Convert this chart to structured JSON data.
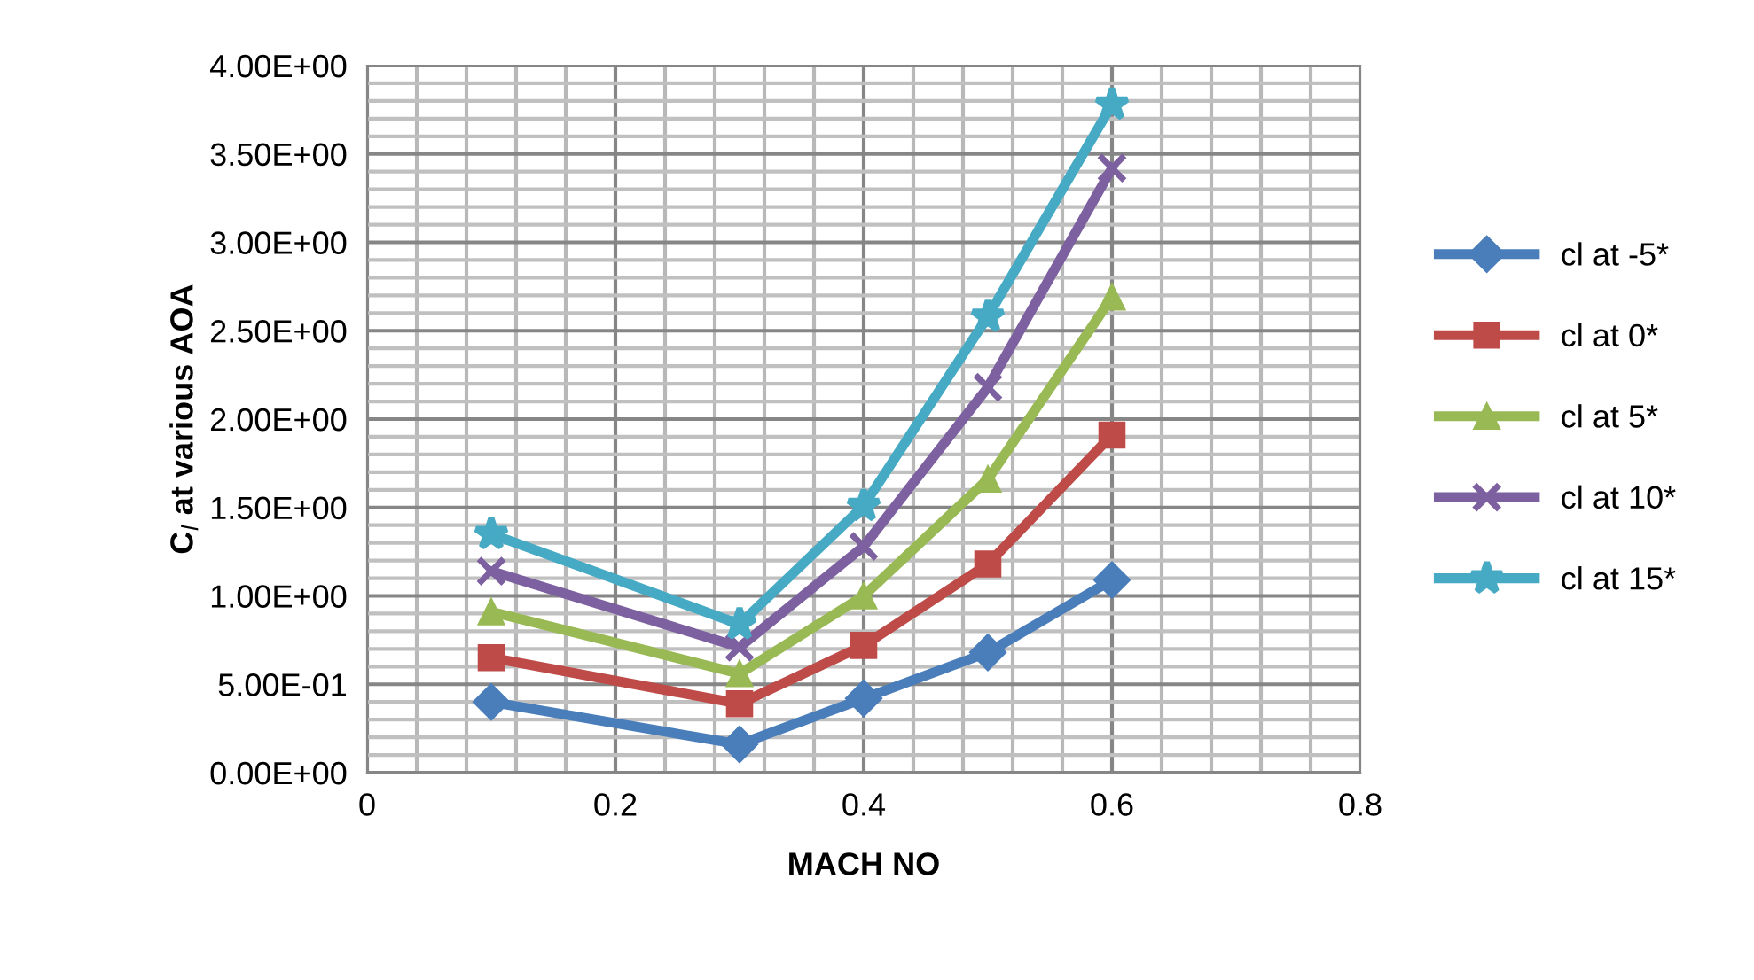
{
  "chart_data": {
    "type": "line",
    "xlabel": "MACH NO",
    "ylabel": "C$_{l}$ at various AOA",
    "x": [
      0.1,
      0.3,
      0.4,
      0.5,
      0.6
    ],
    "series": [
      {
        "name": "cl at -5*",
        "color": "#4a7ebb",
        "marker": "diamond",
        "values": [
          0.4,
          0.16,
          0.42,
          0.68,
          1.09
        ]
      },
      {
        "name": "cl at 0*",
        "color": "#be4b48",
        "marker": "square",
        "values": [
          0.65,
          0.39,
          0.72,
          1.18,
          1.91
        ]
      },
      {
        "name": "cl at 5*",
        "color": "#98b954",
        "marker": "triangle",
        "values": [
          0.91,
          0.56,
          1.0,
          1.66,
          2.69
        ]
      },
      {
        "name": "cl at 10*",
        "color": "#7d60a0",
        "marker": "cross",
        "values": [
          1.14,
          0.71,
          1.28,
          2.18,
          3.42
        ]
      },
      {
        "name": "cl at 15*",
        "color": "#46aac5",
        "marker": "star",
        "values": [
          1.35,
          0.84,
          1.51,
          2.58,
          3.78
        ]
      }
    ],
    "xlim": [
      0,
      0.8
    ],
    "xticks": [
      0,
      {
        "value": 0.04,
        "label": null
      },
      {
        "value": 0.08,
        "label": null
      },
      {
        "value": 0.12,
        "label": null
      },
      {
        "value": 0.16,
        "label": null
      },
      0.2,
      {
        "value": 0.24,
        "label": null
      },
      {
        "value": 0.28,
        "label": null
      },
      {
        "value": 0.32,
        "label": null
      },
      {
        "value": 0.36,
        "label": null
      },
      0.4,
      {
        "value": 0.44,
        "label": null
      },
      {
        "value": 0.48,
        "label": null
      },
      {
        "value": 0.52,
        "label": null
      },
      {
        "value": 0.56,
        "label": null
      },
      0.6,
      {
        "value": 0.64,
        "label": null
      },
      {
        "value": 0.68,
        "label": null
      },
      {
        "value": 0.72,
        "label": null
      },
      {
        "value": 0.76,
        "label": null
      },
      0.8
    ],
    "ylim": [
      0,
      4
    ],
    "yticks": [
      {
        "value": 0,
        "label": "0.00E+00"
      },
      {
        "value": 0.1,
        "label": null
      },
      {
        "value": 0.2,
        "label": null
      },
      {
        "value": 0.3,
        "label": null
      },
      {
        "value": 0.4,
        "label": null
      },
      {
        "value": 0.5,
        "label": "5.00E-01"
      },
      {
        "value": 0.6,
        "label": null
      },
      {
        "value": 0.7,
        "label": null
      },
      {
        "value": 0.8,
        "label": null
      },
      {
        "value": 0.9,
        "label": null
      },
      {
        "value": 1,
        "label": "1.00E+00"
      },
      {
        "value": 1.1,
        "label": null
      },
      {
        "value": 1.2,
        "label": null
      },
      {
        "value": 1.3,
        "label": null
      },
      {
        "value": 1.4,
        "label": null
      },
      {
        "value": 1.5,
        "label": "1.50E+00"
      },
      {
        "value": 1.6,
        "label": null
      },
      {
        "value": 1.7,
        "label": null
      },
      {
        "value": 1.8,
        "label": null
      },
      {
        "value": 1.9,
        "label": null
      },
      {
        "value": 2,
        "label": "2.00E+00"
      },
      {
        "value": 2.1,
        "label": null
      },
      {
        "value": 2.2,
        "label": null
      },
      {
        "value": 2.3,
        "label": null
      },
      {
        "value": 2.4,
        "label": null
      },
      {
        "value": 2.5,
        "label": "2.50E+00"
      },
      {
        "value": 2.6,
        "label": null
      },
      {
        "value": 2.7,
        "label": null
      },
      {
        "value": 2.8,
        "label": null
      },
      {
        "value": 2.9,
        "label": null
      },
      {
        "value": 3,
        "label": "3.00E+00"
      },
      {
        "value": 3.1,
        "label": null
      },
      {
        "value": 3.2,
        "label": null
      },
      {
        "value": 3.3,
        "label": null
      },
      {
        "value": 3.4,
        "label": null
      },
      {
        "value": 3.5,
        "label": "3.50E+00"
      },
      {
        "value": 3.6,
        "label": null
      },
      {
        "value": 3.7,
        "label": null
      },
      {
        "value": 3.8,
        "label": null
      },
      {
        "value": 3.9,
        "label": null
      },
      {
        "value": 4,
        "label": "4.00E+00"
      }
    ],
    "grid": true,
    "legend": "right",
    "line_style": "solid"
  }
}
